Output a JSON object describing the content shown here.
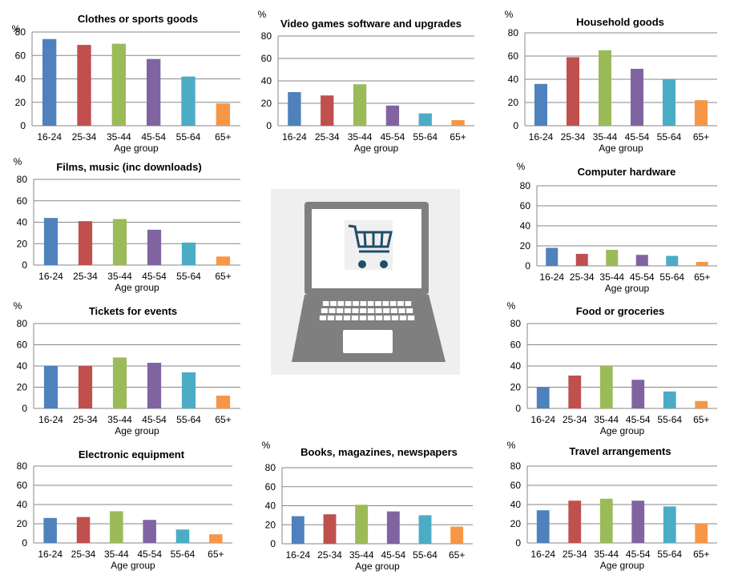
{
  "categories": [
    "16-24",
    "25-34",
    "35-44",
    "45-54",
    "55-64",
    "65+"
  ],
  "colors": [
    "#4F81BD",
    "#C0504D",
    "#9BBB59",
    "#8064A2",
    "#4BACC6",
    "#F79646"
  ],
  "yunit": "%",
  "xlabel": "Age group",
  "icon": {
    "name": "laptop-shopping-cart-icon"
  },
  "chart_data": [
    {
      "type": "bar",
      "title": "Clothes or sports goods",
      "ylabel": "%",
      "xlabel": "Age group",
      "ylim": [
        0,
        80
      ],
      "yticks": [
        0,
        20,
        40,
        60,
        80
      ],
      "categories": [
        "16-24",
        "25-34",
        "35-44",
        "45-54",
        "55-64",
        "65+"
      ],
      "values": [
        74,
        69,
        70,
        57,
        42,
        19
      ]
    },
    {
      "type": "bar",
      "title": "Video games software  and upgrades",
      "ylabel": "%",
      "xlabel": "Age group",
      "ylim": [
        0,
        80
      ],
      "yticks": [
        0,
        20,
        40,
        60,
        80
      ],
      "categories": [
        "16-24",
        "25-34",
        "35-44",
        "45-54",
        "55-64",
        "65+"
      ],
      "values": [
        30,
        27,
        37,
        18,
        11,
        5
      ]
    },
    {
      "type": "bar",
      "title": "Household goods",
      "ylabel": "%",
      "xlabel": "Age group",
      "ylim": [
        0,
        80
      ],
      "yticks": [
        0,
        20,
        40,
        60,
        80
      ],
      "categories": [
        "16-24",
        "25-34",
        "35-44",
        "45-54",
        "55-64",
        "65+"
      ],
      "values": [
        36,
        59,
        65,
        49,
        40,
        22
      ]
    },
    {
      "type": "bar",
      "title": "Films, music (inc downloads)",
      "ylabel": "%",
      "xlabel": "Age group",
      "ylim": [
        0,
        80
      ],
      "yticks": [
        0,
        20,
        40,
        60,
        80
      ],
      "categories": [
        "16-24",
        "25-34",
        "35-44",
        "45-54",
        "55-64",
        "65+"
      ],
      "values": [
        44,
        41,
        43,
        33,
        21,
        8
      ]
    },
    {
      "type": "bar",
      "title": "Computer hardware",
      "ylabel": "%",
      "xlabel": "Age group",
      "ylim": [
        0,
        80
      ],
      "yticks": [
        0,
        20,
        40,
        60,
        80
      ],
      "categories": [
        "16-24",
        "25-34",
        "35-44",
        "45-54",
        "55-64",
        "65+"
      ],
      "values": [
        18,
        12,
        16,
        11,
        10,
        4
      ]
    },
    {
      "type": "bar",
      "title": "Tickets for events",
      "ylabel": "%",
      "xlabel": "Age group",
      "ylim": [
        0,
        80
      ],
      "yticks": [
        0,
        20,
        40,
        60,
        80
      ],
      "categories": [
        "16-24",
        "25-34",
        "35-44",
        "45-54",
        "55-64",
        "65+"
      ],
      "values": [
        40,
        40,
        48,
        43,
        34,
        12
      ]
    },
    {
      "type": "bar",
      "title": "Food or groceries",
      "ylabel": "%",
      "xlabel": "Age group",
      "ylim": [
        0,
        80
      ],
      "yticks": [
        0,
        20,
        40,
        60,
        80
      ],
      "categories": [
        "16-24",
        "25-34",
        "35-44",
        "45-54",
        "55-64",
        "65+"
      ],
      "values": [
        20,
        31,
        40,
        27,
        16,
        7
      ]
    },
    {
      "type": "bar",
      "title": "Electronic equipment",
      "ylabel": "",
      "xlabel": "Age group",
      "ylim": [
        0,
        80
      ],
      "yticks": [
        0,
        20,
        40,
        60,
        80
      ],
      "categories": [
        "16-24",
        "25-34",
        "35-44",
        "45-54",
        "55-64",
        "65+"
      ],
      "values": [
        26,
        27,
        33,
        24,
        14,
        9
      ]
    },
    {
      "type": "bar",
      "title": "Books, magazines, newspapers",
      "ylabel": "%",
      "xlabel": "Age group",
      "ylim": [
        0,
        80
      ],
      "yticks": [
        0,
        20,
        40,
        60,
        80
      ],
      "categories": [
        "16-24",
        "25-34",
        "35-44",
        "45-54",
        "55-64",
        "65+"
      ],
      "values": [
        29,
        31,
        41,
        34,
        30,
        18
      ]
    },
    {
      "type": "bar",
      "title": "Travel arrangements",
      "ylabel": "%",
      "xlabel": "Age group",
      "ylim": [
        0,
        80
      ],
      "yticks": [
        0,
        20,
        40,
        60,
        80
      ],
      "categories": [
        "16-24",
        "25-34",
        "35-44",
        "45-54",
        "55-64",
        "65+"
      ],
      "values": [
        34,
        44,
        46,
        44,
        38,
        20
      ]
    }
  ]
}
